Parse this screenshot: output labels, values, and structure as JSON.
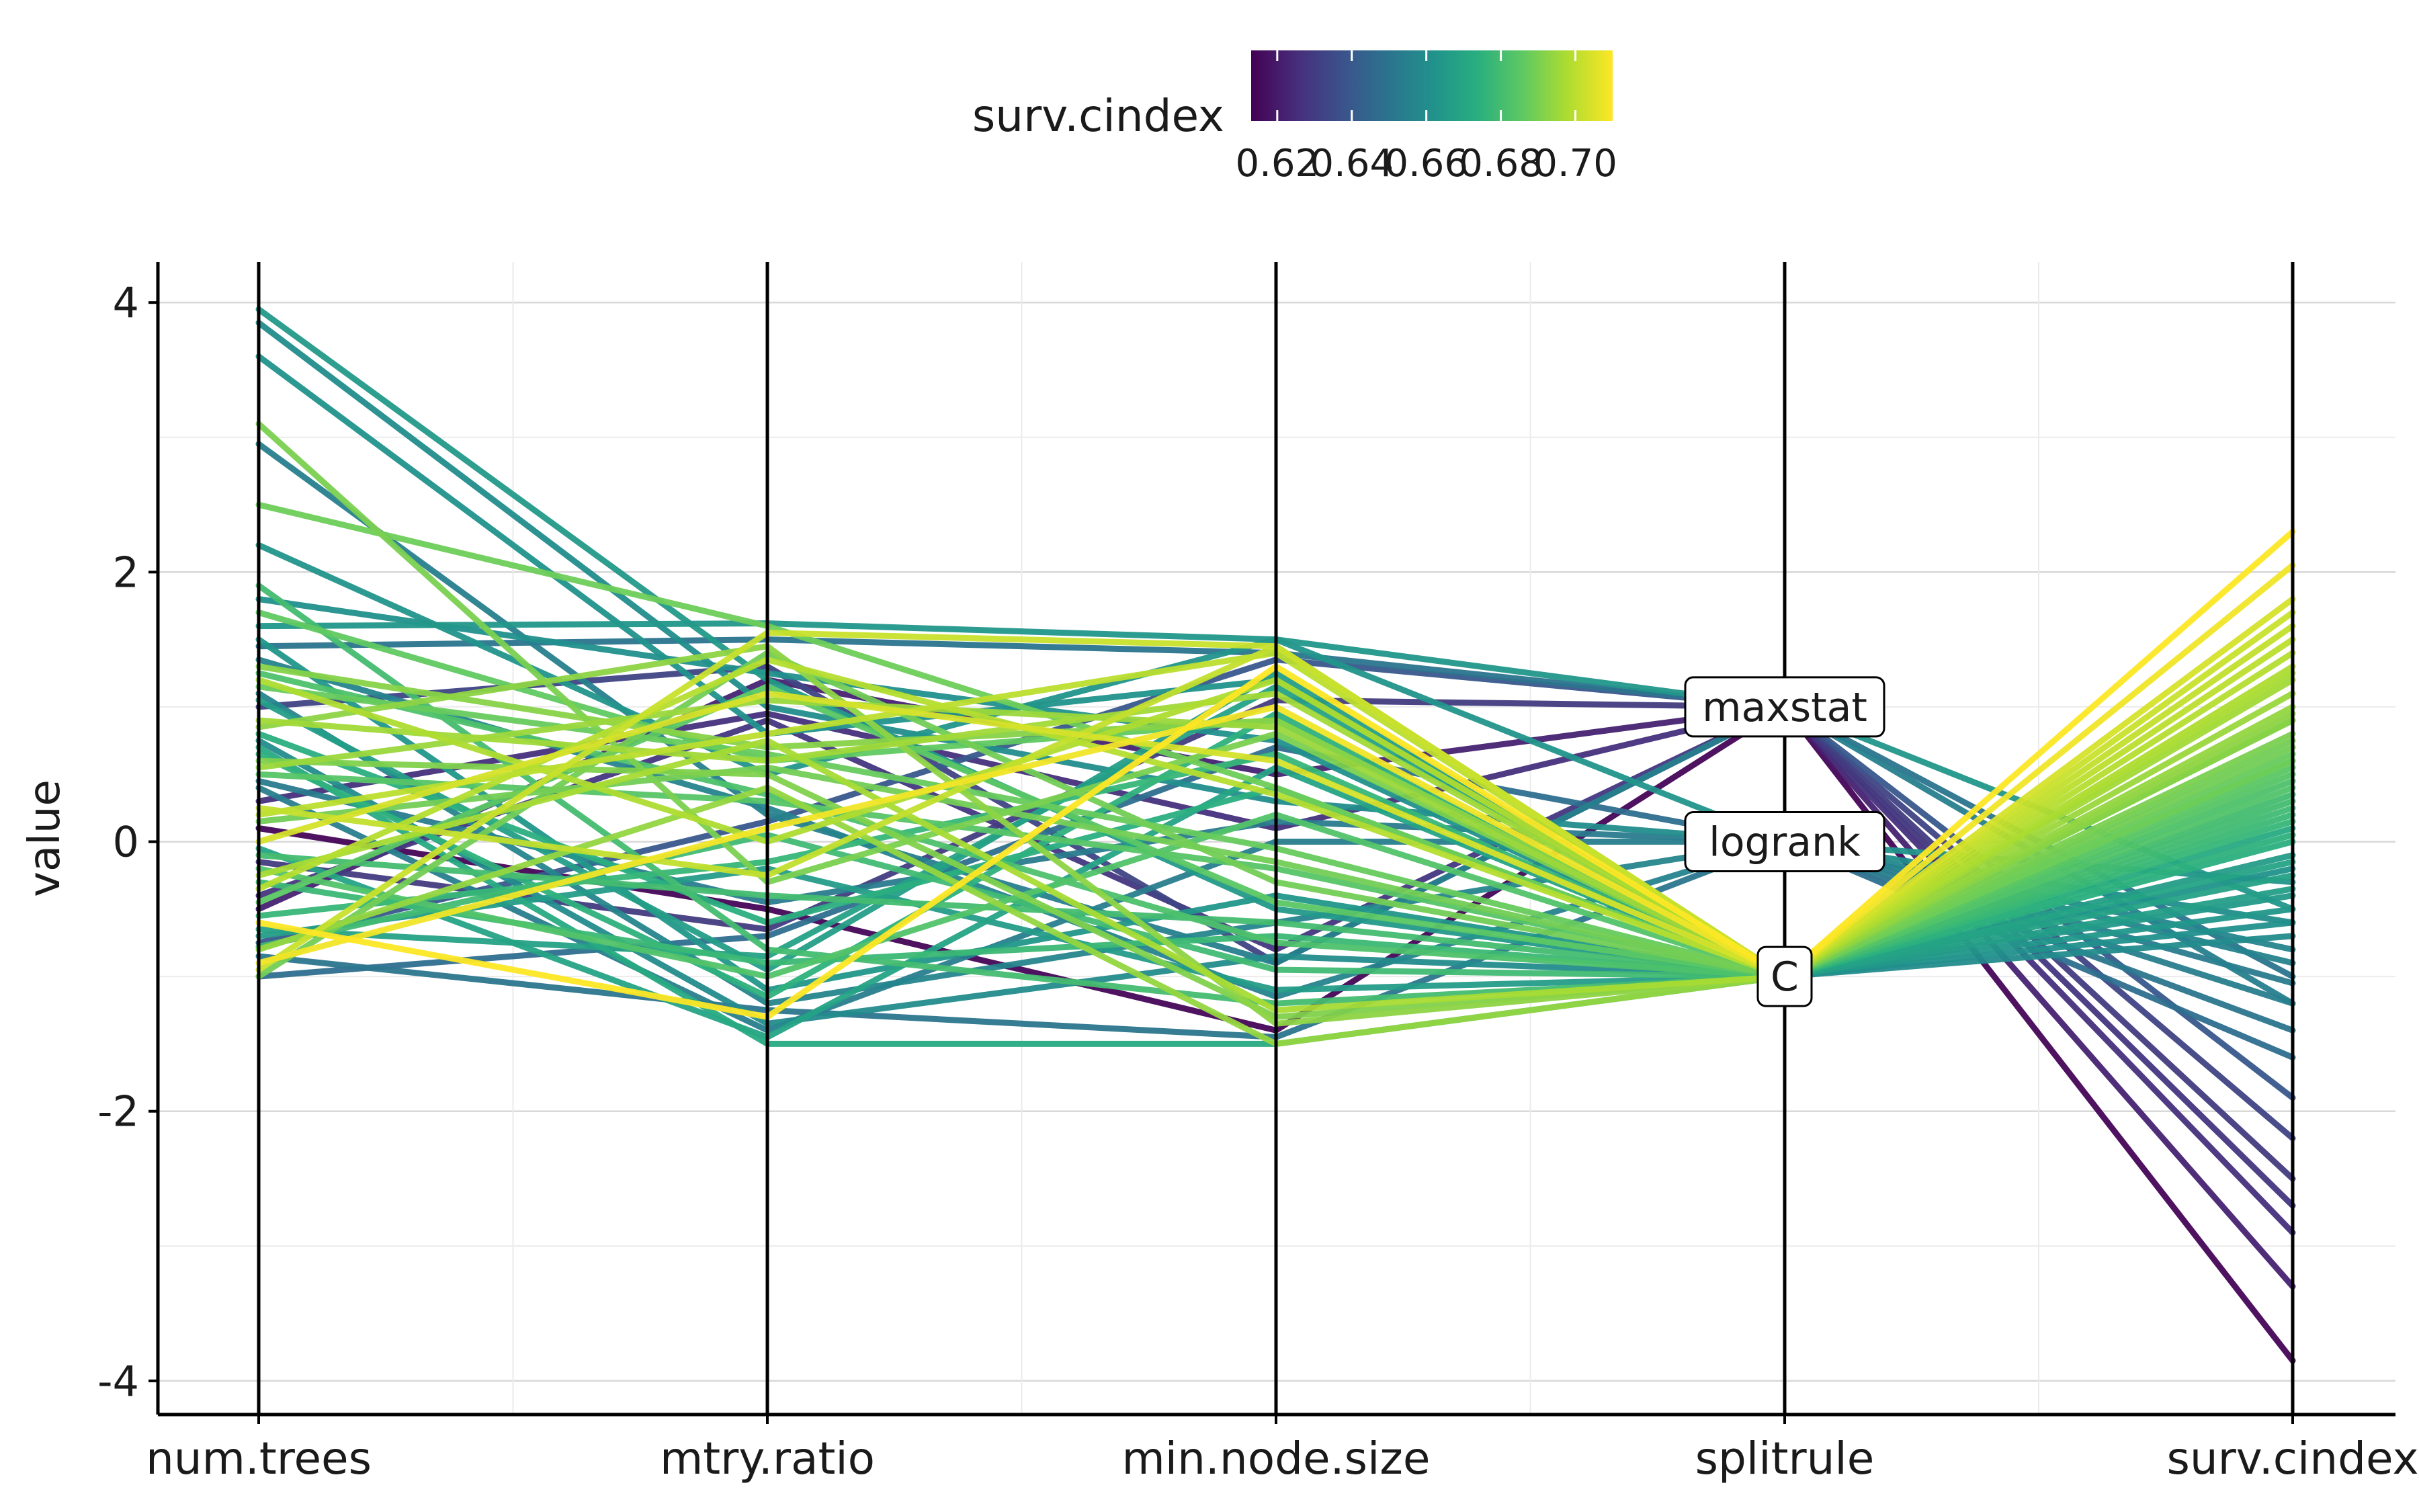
{
  "chart_data": {
    "type": "parallel_coordinates",
    "axes": [
      "num.trees",
      "mtry.ratio",
      "min.node.size",
      "splitrule",
      "surv.cindex"
    ],
    "ylabel": "value",
    "yticks": [
      4,
      2,
      0,
      -2,
      -4
    ],
    "ylim": [
      -4.25,
      4.3
    ],
    "grid": true,
    "legend": {
      "title": "surv.cindex",
      "position": "top",
      "type": "colorbar",
      "ticks": [
        "0.62",
        "0.64",
        "0.66",
        "0.68",
        "0.70"
      ],
      "range": [
        0.613,
        0.71
      ],
      "palette": [
        "#440154",
        "#472d7b",
        "#3b528b",
        "#2c728e",
        "#21918c",
        "#28ae80",
        "#5ec962",
        "#addc30",
        "#fde725"
      ]
    },
    "splitrule_levels": [
      {
        "label": "maxstat",
        "value": 1.0
      },
      {
        "label": "logrank",
        "value": 0.0
      },
      {
        "label": "C",
        "value": -1.0
      }
    ],
    "lines": [
      {
        "values": [
          3.95,
          1.2,
          -0.5,
          -1.0,
          -0.4
        ],
        "cindex": 0.665
      },
      {
        "values": [
          3.85,
          1.0,
          0.3,
          0.0,
          -0.6
        ],
        "cindex": 0.66
      },
      {
        "values": [
          3.6,
          0.8,
          1.2,
          -1.0,
          -0.2
        ],
        "cindex": 0.662
      },
      {
        "values": [
          3.1,
          -0.3,
          0.8,
          -1.0,
          0.8
        ],
        "cindex": 0.69
      },
      {
        "values": [
          2.95,
          0.2,
          -0.9,
          1.0,
          -1.2
        ],
        "cindex": 0.655
      },
      {
        "values": [
          2.5,
          1.6,
          0.4,
          -1.0,
          0.6
        ],
        "cindex": 0.688
      },
      {
        "values": [
          2.2,
          0.5,
          1.5,
          0.0,
          -0.3
        ],
        "cindex": 0.663
      },
      {
        "values": [
          1.9,
          -0.8,
          -1.2,
          -1.0,
          0.3
        ],
        "cindex": 0.68
      },
      {
        "values": [
          1.6,
          1.62,
          1.5,
          1.0,
          -0.5
        ],
        "cindex": 0.664
      },
      {
        "values": [
          1.45,
          1.5,
          1.4,
          1.0,
          -1.0
        ],
        "cindex": 0.65
      },
      {
        "values": [
          1.3,
          0.7,
          0.9,
          -1.0,
          0.9
        ],
        "cindex": 0.692
      },
      {
        "values": [
          1.1,
          -1.2,
          -0.6,
          0.0,
          -0.8
        ],
        "cindex": 0.657
      },
      {
        "values": [
          0.9,
          0.6,
          1.1,
          -1.0,
          1.2
        ],
        "cindex": 0.696
      },
      {
        "values": [
          0.7,
          -1.5,
          -1.5,
          -1.0,
          0.1
        ],
        "cindex": 0.672
      },
      {
        "values": [
          0.5,
          0.3,
          -0.2,
          -1.0,
          0.5
        ],
        "cindex": 0.684
      },
      {
        "values": [
          0.1,
          -0.5,
          -1.4,
          1.0,
          -3.85
        ],
        "cindex": 0.614
      },
      {
        "values": [
          0.0,
          1.1,
          0.6,
          -1.0,
          1.8
        ],
        "cindex": 0.704
      },
      {
        "values": [
          -0.2,
          -1.0,
          0.2,
          -1.0,
          0.4
        ],
        "cindex": 0.683
      },
      {
        "values": [
          -0.4,
          0.9,
          -0.8,
          1.0,
          -2.7
        ],
        "cindex": 0.628
      },
      {
        "values": [
          -0.6,
          -1.3,
          1.3,
          -1.0,
          2.3
        ],
        "cindex": 0.71
      },
      {
        "values": [
          -0.8,
          0.4,
          -1.5,
          -1.0,
          1.0
        ],
        "cindex": 0.694
      },
      {
        "values": [
          -1.0,
          -0.7,
          0.7,
          0.0,
          -1.6
        ],
        "cindex": 0.648
      },
      {
        "values": [
          -1.0,
          1.4,
          -0.3,
          -1.0,
          0.7
        ],
        "cindex": 0.689
      },
      {
        "values": [
          -0.9,
          0.1,
          1.0,
          -1.0,
          2.05
        ],
        "cindex": 0.708
      },
      {
        "values": [
          -0.7,
          -0.2,
          -1.1,
          -1.0,
          -0.1
        ],
        "cindex": 0.666
      },
      {
        "values": [
          -0.5,
          1.2,
          0.5,
          1.0,
          -3.3
        ],
        "cindex": 0.622
      },
      {
        "values": [
          -0.3,
          -0.9,
          -0.7,
          -1.0,
          0.2
        ],
        "cindex": 0.678
      },
      {
        "values": [
          0.2,
          0.8,
          1.4,
          -1.0,
          1.5
        ],
        "cindex": 0.7
      },
      {
        "values": [
          0.4,
          -1.4,
          0.0,
          0.0,
          -1.2
        ],
        "cindex": 0.654
      },
      {
        "values": [
          0.6,
          0.5,
          -1.3,
          -1.0,
          0.9
        ],
        "cindex": 0.691
      },
      {
        "values": [
          0.8,
          -0.6,
          0.4,
          -1.0,
          0.0
        ],
        "cindex": 0.674
      },
      {
        "values": [
          1.0,
          1.3,
          -0.9,
          1.0,
          -2.2
        ],
        "cindex": 0.633
      },
      {
        "values": [
          1.2,
          0.0,
          1.2,
          -1.0,
          1.3
        ],
        "cindex": 0.698
      },
      {
        "values": [
          1.5,
          -1.1,
          -0.4,
          -1.0,
          -0.5
        ],
        "cindex": 0.664
      },
      {
        "values": [
          1.7,
          0.6,
          0.9,
          -1.0,
          0.6
        ],
        "cindex": 0.686
      },
      {
        "values": [
          -0.95,
          1.55,
          1.45,
          -1.0,
          1.7
        ],
        "cindex": 0.702
      },
      {
        "values": [
          -0.85,
          -1.25,
          -1.45,
          0.0,
          -1.4
        ],
        "cindex": 0.651
      },
      {
        "values": [
          0.3,
          0.95,
          0.1,
          1.0,
          -2.9
        ],
        "cindex": 0.626
      },
      {
        "values": [
          -0.1,
          -0.4,
          -0.6,
          -1.0,
          0.35
        ],
        "cindex": 0.68
      },
      {
        "values": [
          0.55,
          1.05,
          0.85,
          -1.0,
          1.1
        ],
        "cindex": 0.695
      },
      {
        "values": [
          -0.65,
          -0.85,
          1.15,
          -1.0,
          -0.25
        ],
        "cindex": 0.668
      },
      {
        "values": [
          1.35,
          0.25,
          -1.15,
          0.0,
          -0.9
        ],
        "cindex": 0.656
      },
      {
        "values": [
          -0.35,
          1.35,
          0.35,
          -1.0,
          1.4
        ],
        "cindex": 0.699
      },
      {
        "values": [
          0.75,
          -1.35,
          -0.85,
          -1.0,
          -0.7
        ],
        "cindex": 0.659
      },
      {
        "values": [
          -0.75,
          0.15,
          1.35,
          1.0,
          -1.9
        ],
        "cindex": 0.64
      },
      {
        "values": [
          0.15,
          0.55,
          -0.15,
          -1.0,
          0.75
        ],
        "cindex": 0.689
      },
      {
        "values": [
          -0.55,
          -0.15,
          0.65,
          -1.0,
          0.15
        ],
        "cindex": 0.677
      },
      {
        "values": [
          1.05,
          -0.95,
          1.25,
          -1.0,
          -0.35
        ],
        "cindex": 0.667
      },
      {
        "values": [
          -0.25,
          0.75,
          -1.25,
          -1.0,
          1.25
        ],
        "cindex": 0.697
      },
      {
        "values": [
          0.45,
          -0.45,
          0.15,
          0.0,
          -1.05
        ],
        "cindex": 0.653
      },
      {
        "values": [
          -0.45,
          1.15,
          -0.45,
          -1.0,
          0.55
        ],
        "cindex": 0.685
      },
      {
        "values": [
          0.65,
          -1.15,
          0.95,
          -1.0,
          0.05
        ],
        "cindex": 0.675
      },
      {
        "values": [
          1.25,
          0.35,
          -0.75,
          -1.0,
          0.45
        ],
        "cindex": 0.682
      },
      {
        "values": [
          -0.15,
          -0.65,
          1.05,
          1.0,
          -2.5
        ],
        "cindex": 0.63
      },
      {
        "values": [
          0.85,
          1.45,
          -1.35,
          -1.0,
          0.95
        ],
        "cindex": 0.693
      },
      {
        "values": [
          -0.05,
          -1.45,
          0.55,
          -1.0,
          -0.15
        ],
        "cindex": 0.669
      },
      {
        "values": [
          1.15,
          0.65,
          -0.05,
          -1.0,
          0.65
        ],
        "cindex": 0.687
      },
      {
        "values": [
          -0.78,
          0.05,
          -0.95,
          -1.0,
          0.25
        ],
        "cindex": 0.679
      },
      {
        "values": [
          0.25,
          -0.25,
          1.45,
          -1.0,
          1.6
        ],
        "cindex": 0.701
      },
      {
        "values": [
          1.8,
          1.25,
          0.75,
          -1.0,
          -0.6
        ],
        "cindex": 0.661
      }
    ]
  }
}
